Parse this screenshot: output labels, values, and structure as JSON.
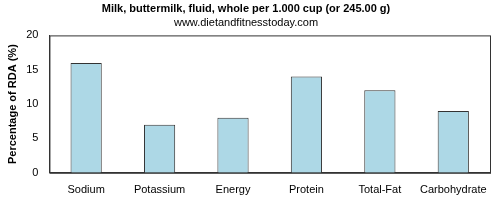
{
  "chart_data": {
    "type": "bar",
    "title": "Milk, buttermilk, fluid, whole per 1.000 cup (or 245.00 g)",
    "subtitle": "www.dietandfitnesstoday.com",
    "y_label": "Percentage of RDA (%)",
    "categories": [
      "Sodium",
      "Potassium",
      "Energy",
      "Protein",
      "Total-Fat",
      "Carbohydrate"
    ],
    "values": [
      16,
      7,
      8,
      14,
      12,
      9
    ],
    "color": "#add8e6",
    "ylim": [
      0,
      20
    ],
    "yticks": [
      0,
      5,
      10,
      15,
      20
    ],
    "grid": false
  }
}
